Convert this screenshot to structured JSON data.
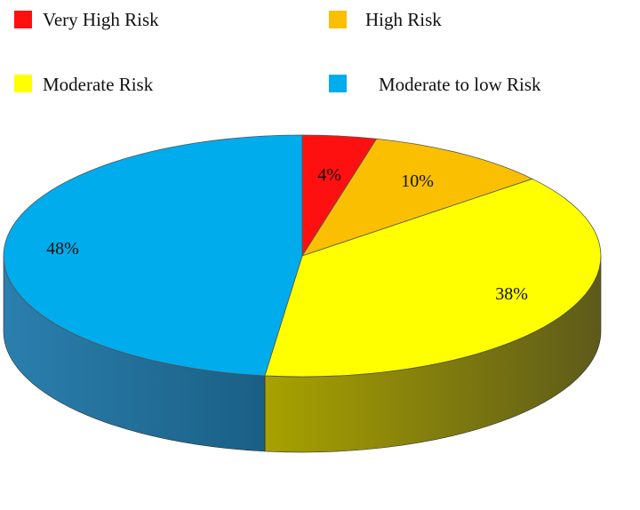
{
  "chart_data": {
    "type": "pie",
    "style": "3d",
    "legend_position": "top",
    "categories": [
      "Very High Risk",
      "High Risk",
      "Moderate Risk",
      "Moderate to low Risk"
    ],
    "values": [
      4,
      10,
      38,
      48
    ],
    "value_labels": [
      "4%",
      "10%",
      "38%",
      "48%"
    ],
    "colors": [
      "#ff1010",
      "#f9bf00",
      "#ffff00",
      "#00acec"
    ],
    "side_colors": [
      "#8a0808",
      "#9a7400",
      "#7c7c00",
      "#1a6f96"
    ]
  }
}
